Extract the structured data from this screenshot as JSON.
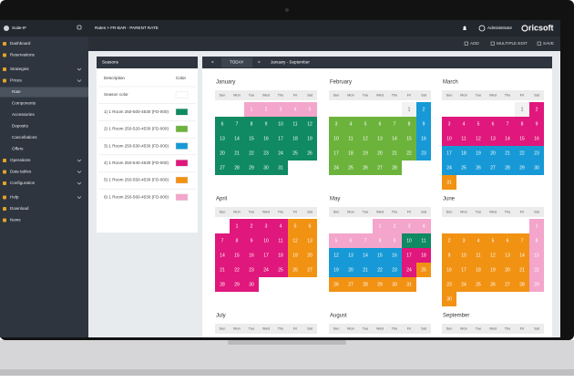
{
  "header": {
    "app": "Suite-IF",
    "breadcrumb": "Rates  >  FR-BAR - PARENT RATE",
    "user": "Administrator",
    "logo": "ricsoft"
  },
  "toolbar": [
    "ADD",
    "MULTIPLE EDIT",
    "SAVE"
  ],
  "sidebar": [
    {
      "label": "Dashboard"
    },
    {
      "label": "Reservations"
    },
    {
      "label": "Strategies",
      "expandable": true
    },
    {
      "label": "Prices",
      "expandable": true
    },
    {
      "label": "Rate",
      "sub": true,
      "selected": true
    },
    {
      "label": "Components",
      "sub": true
    },
    {
      "label": "Accessories",
      "sub": true
    },
    {
      "label": "Deposits",
      "sub": true
    },
    {
      "label": "Cancellations",
      "sub": true
    },
    {
      "label": "Offers",
      "sub": true
    },
    {
      "label": "Operations",
      "expandable": true
    },
    {
      "label": "Data tables",
      "expandable": true
    },
    {
      "label": "Configuration",
      "expandable": true
    },
    {
      "label": "Help",
      "expandable": true
    },
    {
      "label": "Download"
    },
    {
      "label": "News"
    }
  ],
  "seasons": {
    "title": "Seasons",
    "columns": [
      "Description",
      "Color"
    ],
    "rows": [
      {
        "label": "Season color",
        "color": "#ffffff"
      },
      {
        "label": "1) 1 Room 250-500-4530 (FD-000)",
        "color": "#0f8a62"
      },
      {
        "label": "2) 1 Room 250-520-4530 (FD-000)",
        "color": "#6cb33c"
      },
      {
        "label": "3) 1 Room 250-530-4530 (FD-000)",
        "color": "#1699d6"
      },
      {
        "label": "4) 1 Room 250-540-4530 (FD-000)",
        "color": "#e0177c"
      },
      {
        "label": "5) 1 Room 250-550-4530 (FD-000)",
        "color": "#f19213"
      },
      {
        "label": "6) 1 Room 250-560-4530 (FD-000)",
        "color": "#f3a5cb"
      }
    ]
  },
  "calendar": {
    "nav": [
      "<",
      "TODAY",
      ">"
    ],
    "range": "January - September",
    "weekdays": [
      "Sun",
      "Mon",
      "Tue",
      "Wed",
      "Thu",
      "Fri",
      "Sat"
    ],
    "months": [
      {
        "name": "January",
        "weeks": [
          [
            null,
            null,
            [
              1,
              6
            ],
            [
              2,
              6
            ],
            [
              3,
              6
            ],
            [
              4,
              6
            ],
            [
              5,
              6
            ]
          ],
          [
            [
              6,
              1
            ],
            [
              7,
              1
            ],
            [
              8,
              1
            ],
            [
              9,
              1
            ],
            [
              10,
              1
            ],
            [
              11,
              1
            ],
            [
              12,
              1
            ]
          ],
          [
            [
              13,
              1
            ],
            [
              14,
              1
            ],
            [
              15,
              1
            ],
            [
              16,
              1
            ],
            [
              17,
              1
            ],
            [
              18,
              1
            ],
            [
              19,
              1
            ]
          ],
          [
            [
              20,
              1
            ],
            [
              21,
              1
            ],
            [
              22,
              1
            ],
            [
              23,
              1
            ],
            [
              24,
              1
            ],
            [
              25,
              1
            ],
            [
              26,
              1
            ]
          ],
          [
            [
              27,
              1
            ],
            [
              28,
              1
            ],
            [
              29,
              1
            ],
            [
              30,
              1
            ],
            [
              31,
              1
            ],
            null,
            null
          ]
        ]
      },
      {
        "name": "February",
        "weeks": [
          [
            null,
            null,
            null,
            null,
            null,
            [
              1,
              null
            ],
            [
              2,
              3
            ]
          ],
          [
            [
              3,
              2
            ],
            [
              4,
              2
            ],
            [
              5,
              2
            ],
            [
              6,
              2
            ],
            [
              7,
              2
            ],
            [
              8,
              2
            ],
            [
              9,
              3
            ]
          ],
          [
            [
              10,
              2
            ],
            [
              11,
              2
            ],
            [
              12,
              2
            ],
            [
              13,
              2
            ],
            [
              14,
              2
            ],
            [
              15,
              2
            ],
            [
              16,
              3
            ]
          ],
          [
            [
              17,
              2
            ],
            [
              18,
              2
            ],
            [
              19,
              2
            ],
            [
              20,
              2
            ],
            [
              21,
              2
            ],
            [
              22,
              2
            ],
            [
              23,
              3
            ]
          ],
          [
            [
              24,
              2
            ],
            [
              25,
              2
            ],
            [
              26,
              2
            ],
            [
              27,
              2
            ],
            [
              28,
              2
            ],
            null,
            null
          ]
        ]
      },
      {
        "name": "March",
        "weeks": [
          [
            null,
            null,
            null,
            null,
            null,
            [
              1,
              null
            ],
            [
              2,
              4
            ]
          ],
          [
            [
              3,
              4
            ],
            [
              4,
              4
            ],
            [
              5,
              4
            ],
            [
              6,
              4
            ],
            [
              7,
              4
            ],
            [
              8,
              4
            ],
            [
              9,
              4
            ]
          ],
          [
            [
              10,
              4
            ],
            [
              11,
              4
            ],
            [
              12,
              4
            ],
            [
              13,
              4
            ],
            [
              14,
              4
            ],
            [
              15,
              4
            ],
            [
              16,
              4
            ]
          ],
          [
            [
              17,
              3
            ],
            [
              18,
              3
            ],
            [
              19,
              3
            ],
            [
              20,
              3
            ],
            [
              21,
              3
            ],
            [
              22,
              3
            ],
            [
              23,
              3
            ]
          ],
          [
            [
              24,
              3
            ],
            [
              25,
              3
            ],
            [
              26,
              3
            ],
            [
              27,
              3
            ],
            [
              28,
              3
            ],
            [
              29,
              3
            ],
            [
              30,
              3
            ]
          ],
          [
            [
              31,
              5
            ],
            null,
            null,
            null,
            null,
            null,
            null
          ]
        ]
      },
      {
        "name": "April",
        "weeks": [
          [
            null,
            [
              1,
              4
            ],
            [
              2,
              4
            ],
            [
              3,
              4
            ],
            [
              4,
              4
            ],
            [
              5,
              5
            ],
            [
              6,
              5
            ]
          ],
          [
            [
              7,
              4
            ],
            [
              8,
              4
            ],
            [
              9,
              4
            ],
            [
              10,
              4
            ],
            [
              11,
              4
            ],
            [
              12,
              5
            ],
            [
              13,
              5
            ]
          ],
          [
            [
              14,
              4
            ],
            [
              15,
              4
            ],
            [
              16,
              4
            ],
            [
              17,
              4
            ],
            [
              18,
              4
            ],
            [
              19,
              5
            ],
            [
              20,
              5
            ]
          ],
          [
            [
              21,
              4
            ],
            [
              22,
              4
            ],
            [
              23,
              4
            ],
            [
              24,
              4
            ],
            [
              25,
              4
            ],
            [
              26,
              5
            ],
            [
              27,
              5
            ]
          ],
          [
            [
              28,
              4
            ],
            [
              29,
              4
            ],
            [
              30,
              4
            ],
            null,
            null,
            null,
            null
          ]
        ]
      },
      {
        "name": "May",
        "weeks": [
          [
            null,
            null,
            null,
            [
              1,
              6
            ],
            [
              2,
              6
            ],
            [
              3,
              6
            ],
            [
              4,
              6
            ]
          ],
          [
            [
              5,
              6
            ],
            [
              6,
              6
            ],
            [
              7,
              6
            ],
            [
              8,
              6
            ],
            [
              9,
              6
            ],
            [
              10,
              1
            ],
            [
              11,
              1
            ]
          ],
          [
            [
              12,
              3
            ],
            [
              13,
              3
            ],
            [
              14,
              3
            ],
            [
              15,
              3
            ],
            [
              16,
              3
            ],
            [
              17,
              4
            ],
            [
              18,
              4
            ]
          ],
          [
            [
              19,
              3
            ],
            [
              20,
              3
            ],
            [
              21,
              3
            ],
            [
              22,
              3
            ],
            [
              23,
              3
            ],
            [
              24,
              4
            ],
            [
              25,
              5
            ]
          ],
          [
            [
              26,
              5
            ],
            [
              27,
              5
            ],
            [
              28,
              5
            ],
            [
              29,
              5
            ],
            [
              30,
              5
            ],
            [
              31,
              5
            ],
            null
          ]
        ]
      },
      {
        "name": "June",
        "weeks": [
          [
            null,
            null,
            null,
            null,
            null,
            null,
            [
              1,
              6
            ]
          ],
          [
            [
              2,
              5
            ],
            [
              3,
              5
            ],
            [
              4,
              5
            ],
            [
              5,
              5
            ],
            [
              6,
              5
            ],
            [
              7,
              5
            ],
            [
              8,
              6
            ]
          ],
          [
            [
              9,
              5
            ],
            [
              10,
              5
            ],
            [
              11,
              5
            ],
            [
              12,
              5
            ],
            [
              13,
              5
            ],
            [
              14,
              5
            ],
            [
              15,
              6
            ]
          ],
          [
            [
              16,
              5
            ],
            [
              17,
              5
            ],
            [
              18,
              5
            ],
            [
              19,
              5
            ],
            [
              20,
              5
            ],
            [
              21,
              5
            ],
            [
              22,
              6
            ]
          ],
          [
            [
              23,
              5
            ],
            [
              24,
              5
            ],
            [
              25,
              5
            ],
            [
              26,
              5
            ],
            [
              27,
              5
            ],
            [
              28,
              5
            ],
            [
              29,
              6
            ]
          ],
          [
            [
              30,
              5
            ],
            null,
            null,
            null,
            null,
            null,
            null
          ]
        ]
      },
      {
        "name": "July",
        "weeks": []
      },
      {
        "name": "August",
        "weeks": []
      },
      {
        "name": "September",
        "weeks": []
      }
    ]
  }
}
